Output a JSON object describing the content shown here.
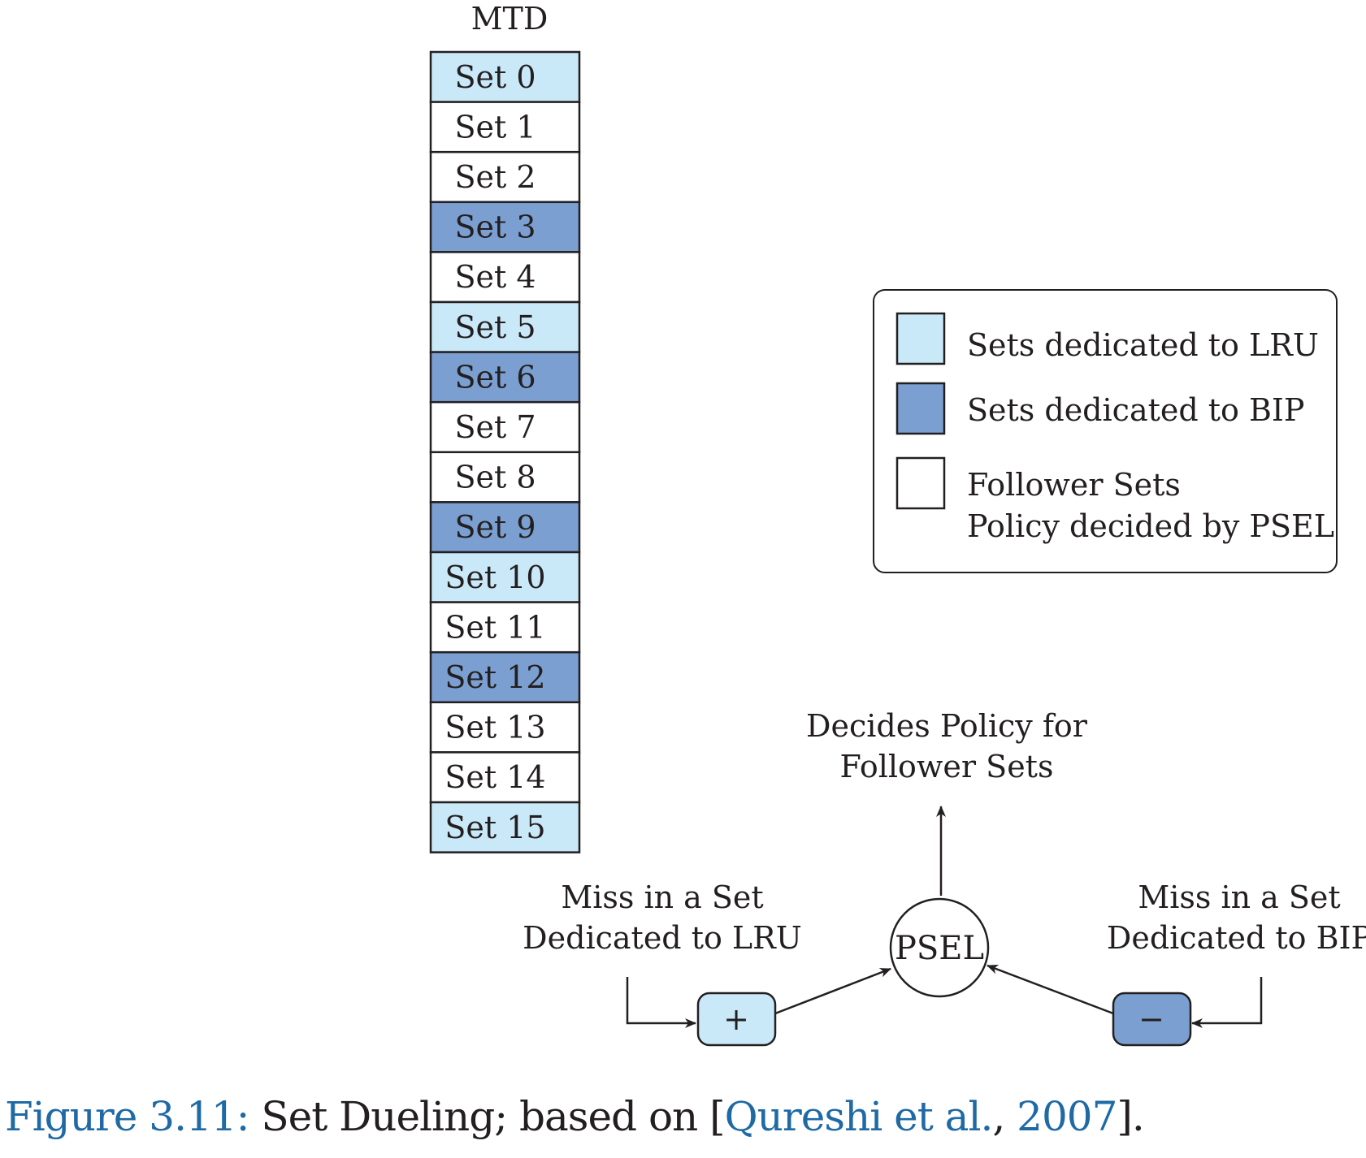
{
  "colors": {
    "lru": "#c9e8f8",
    "bip": "#7a9fd0",
    "follower": "#ffffff",
    "stroke": "#231f20",
    "caption_blue": "#1f6aa5"
  },
  "mtd": {
    "title": "MTD",
    "sets": [
      {
        "label": "Set 0",
        "kind": "lru"
      },
      {
        "label": "Set 1",
        "kind": "follower"
      },
      {
        "label": "Set 2",
        "kind": "follower"
      },
      {
        "label": "Set 3",
        "kind": "bip"
      },
      {
        "label": "Set 4",
        "kind": "follower"
      },
      {
        "label": "Set 5",
        "kind": "lru"
      },
      {
        "label": "Set 6",
        "kind": "bip"
      },
      {
        "label": "Set 7",
        "kind": "follower"
      },
      {
        "label": "Set 8",
        "kind": "follower"
      },
      {
        "label": "Set 9",
        "kind": "bip"
      },
      {
        "label": "Set 10",
        "kind": "lru"
      },
      {
        "label": "Set 11",
        "kind": "follower"
      },
      {
        "label": "Set 12",
        "kind": "bip"
      },
      {
        "label": "Set 13",
        "kind": "follower"
      },
      {
        "label": "Set 14",
        "kind": "follower"
      },
      {
        "label": "Set 15",
        "kind": "lru"
      }
    ]
  },
  "legend": {
    "lru": "Sets dedicated to LRU",
    "bip": "Sets dedicated to BIP",
    "follower_line1": "Follower Sets",
    "follower_line2": "Policy decided by PSEL"
  },
  "psel": {
    "label": "PSEL",
    "output_line1": "Decides Policy for",
    "output_line2": "Follower Sets",
    "plus": "+",
    "minus": "−",
    "left_line1": "Miss in a Set",
    "left_line2": "Dedicated to LRU",
    "right_line1": "Miss in a Set",
    "right_line2": "Dedicated to BIP"
  },
  "caption": {
    "prefix": "Figure 3.11:",
    "text": " Set Dueling; based on [",
    "cite": "Qureshi et al.",
    "sep": ", ",
    "year": "2007",
    "end": "]."
  }
}
